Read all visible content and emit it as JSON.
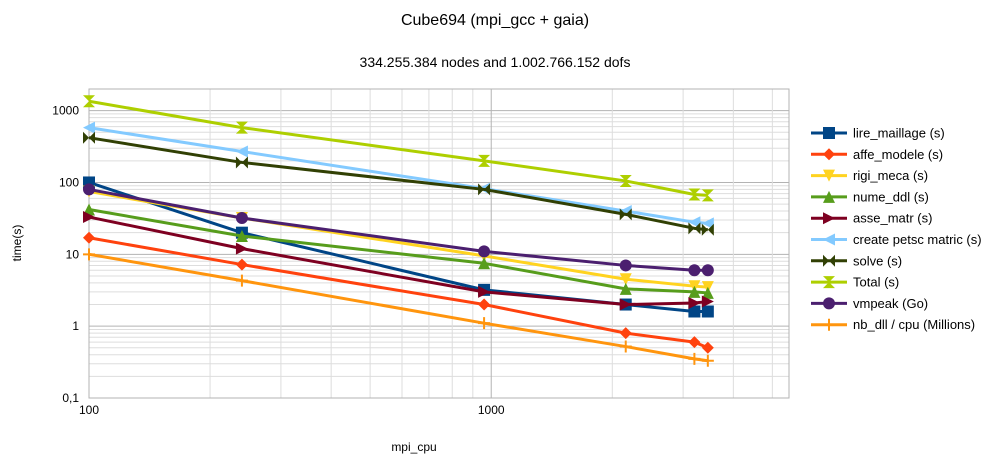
{
  "chart_data": {
    "type": "line",
    "title": "Cube694 (mpi_gcc + gaia)",
    "subtitle": "334.255.384 nodes and 1.002.766.152 dofs",
    "xlabel": "mpi_cpu",
    "ylabel": "time(s)",
    "xscale": "log",
    "yscale": "log",
    "xlim": [
      100,
      5500
    ],
    "ylim": [
      0.1,
      2000
    ],
    "x_ticks": [
      {
        "v": 100,
        "label": "100"
      },
      {
        "v": 1000,
        "label": "1000"
      }
    ],
    "y_ticks": [
      {
        "v": 1000,
        "label": "1000"
      },
      {
        "v": 100,
        "label": "100"
      },
      {
        "v": 10,
        "label": "10"
      },
      {
        "v": 1,
        "label": "1"
      },
      {
        "v": 0.1,
        "label": "0,1"
      }
    ],
    "grid": true,
    "legend_position": "right",
    "series": [
      {
        "name": "lire_maillage (s)",
        "color": "#004586",
        "marker": "square",
        "x": [
          100,
          240,
          960,
          2160,
          3200,
          3456
        ],
        "y": [
          100,
          20,
          3.2,
          2.0,
          1.6,
          1.6
        ]
      },
      {
        "name": "affe_modele (s)",
        "color": "#ff420e",
        "marker": "diamond",
        "x": [
          100,
          240,
          960,
          2160,
          3200,
          3456
        ],
        "y": [
          17,
          7.2,
          2.0,
          0.8,
          0.6,
          0.5
        ]
      },
      {
        "name": "rigi_meca (s)",
        "color": "#ffd320",
        "marker": "triangle-down",
        "x": [
          100,
          240,
          960,
          2160,
          3200,
          3456
        ],
        "y": [
          75,
          32,
          9.5,
          4.5,
          3.6,
          3.5
        ]
      },
      {
        "name": "nume_ddl  (s)",
        "color": "#579d1c",
        "marker": "triangle-up",
        "x": [
          100,
          240,
          960,
          2160,
          3200,
          3456
        ],
        "y": [
          42,
          18,
          7.5,
          3.3,
          3.0,
          2.9
        ]
      },
      {
        "name": "asse_matr  (s)",
        "color": "#7e0021",
        "marker": "triangle-right",
        "x": [
          100,
          240,
          960,
          2160,
          3200,
          3456
        ],
        "y": [
          33,
          12,
          3.0,
          2.0,
          2.1,
          2.2
        ]
      },
      {
        "name": "create petsc matric (s)",
        "color": "#83caff",
        "marker": "triangle-left",
        "x": [
          100,
          240,
          960,
          2160,
          3200,
          3456
        ],
        "y": [
          580,
          270,
          82,
          40,
          28,
          27
        ]
      },
      {
        "name": "solve  (s)",
        "color": "#314004",
        "marker": "bowtie",
        "x": [
          100,
          240,
          960,
          2160,
          3200,
          3456
        ],
        "y": [
          420,
          190,
          80,
          36,
          23,
          22
        ]
      },
      {
        "name": "Total  (s)",
        "color": "#aecf00",
        "marker": "hourglass",
        "x": [
          100,
          240,
          960,
          2160,
          3200,
          3456
        ],
        "y": [
          1350,
          580,
          200,
          105,
          68,
          66
        ]
      },
      {
        "name": "vmpeak (Go)",
        "color": "#4b1f6f",
        "marker": "circle",
        "x": [
          100,
          240,
          960,
          2160,
          3200,
          3456
        ],
        "y": [
          80,
          32,
          11,
          7.0,
          6.0,
          6.0
        ]
      },
      {
        "name": "nb_dll / cpu (Millions)",
        "color": "#ff950e",
        "marker": "plus",
        "x": [
          100,
          240,
          960,
          2160,
          3200,
          3456
        ],
        "y": [
          10,
          4.3,
          1.1,
          0.52,
          0.35,
          0.33
        ]
      }
    ]
  }
}
